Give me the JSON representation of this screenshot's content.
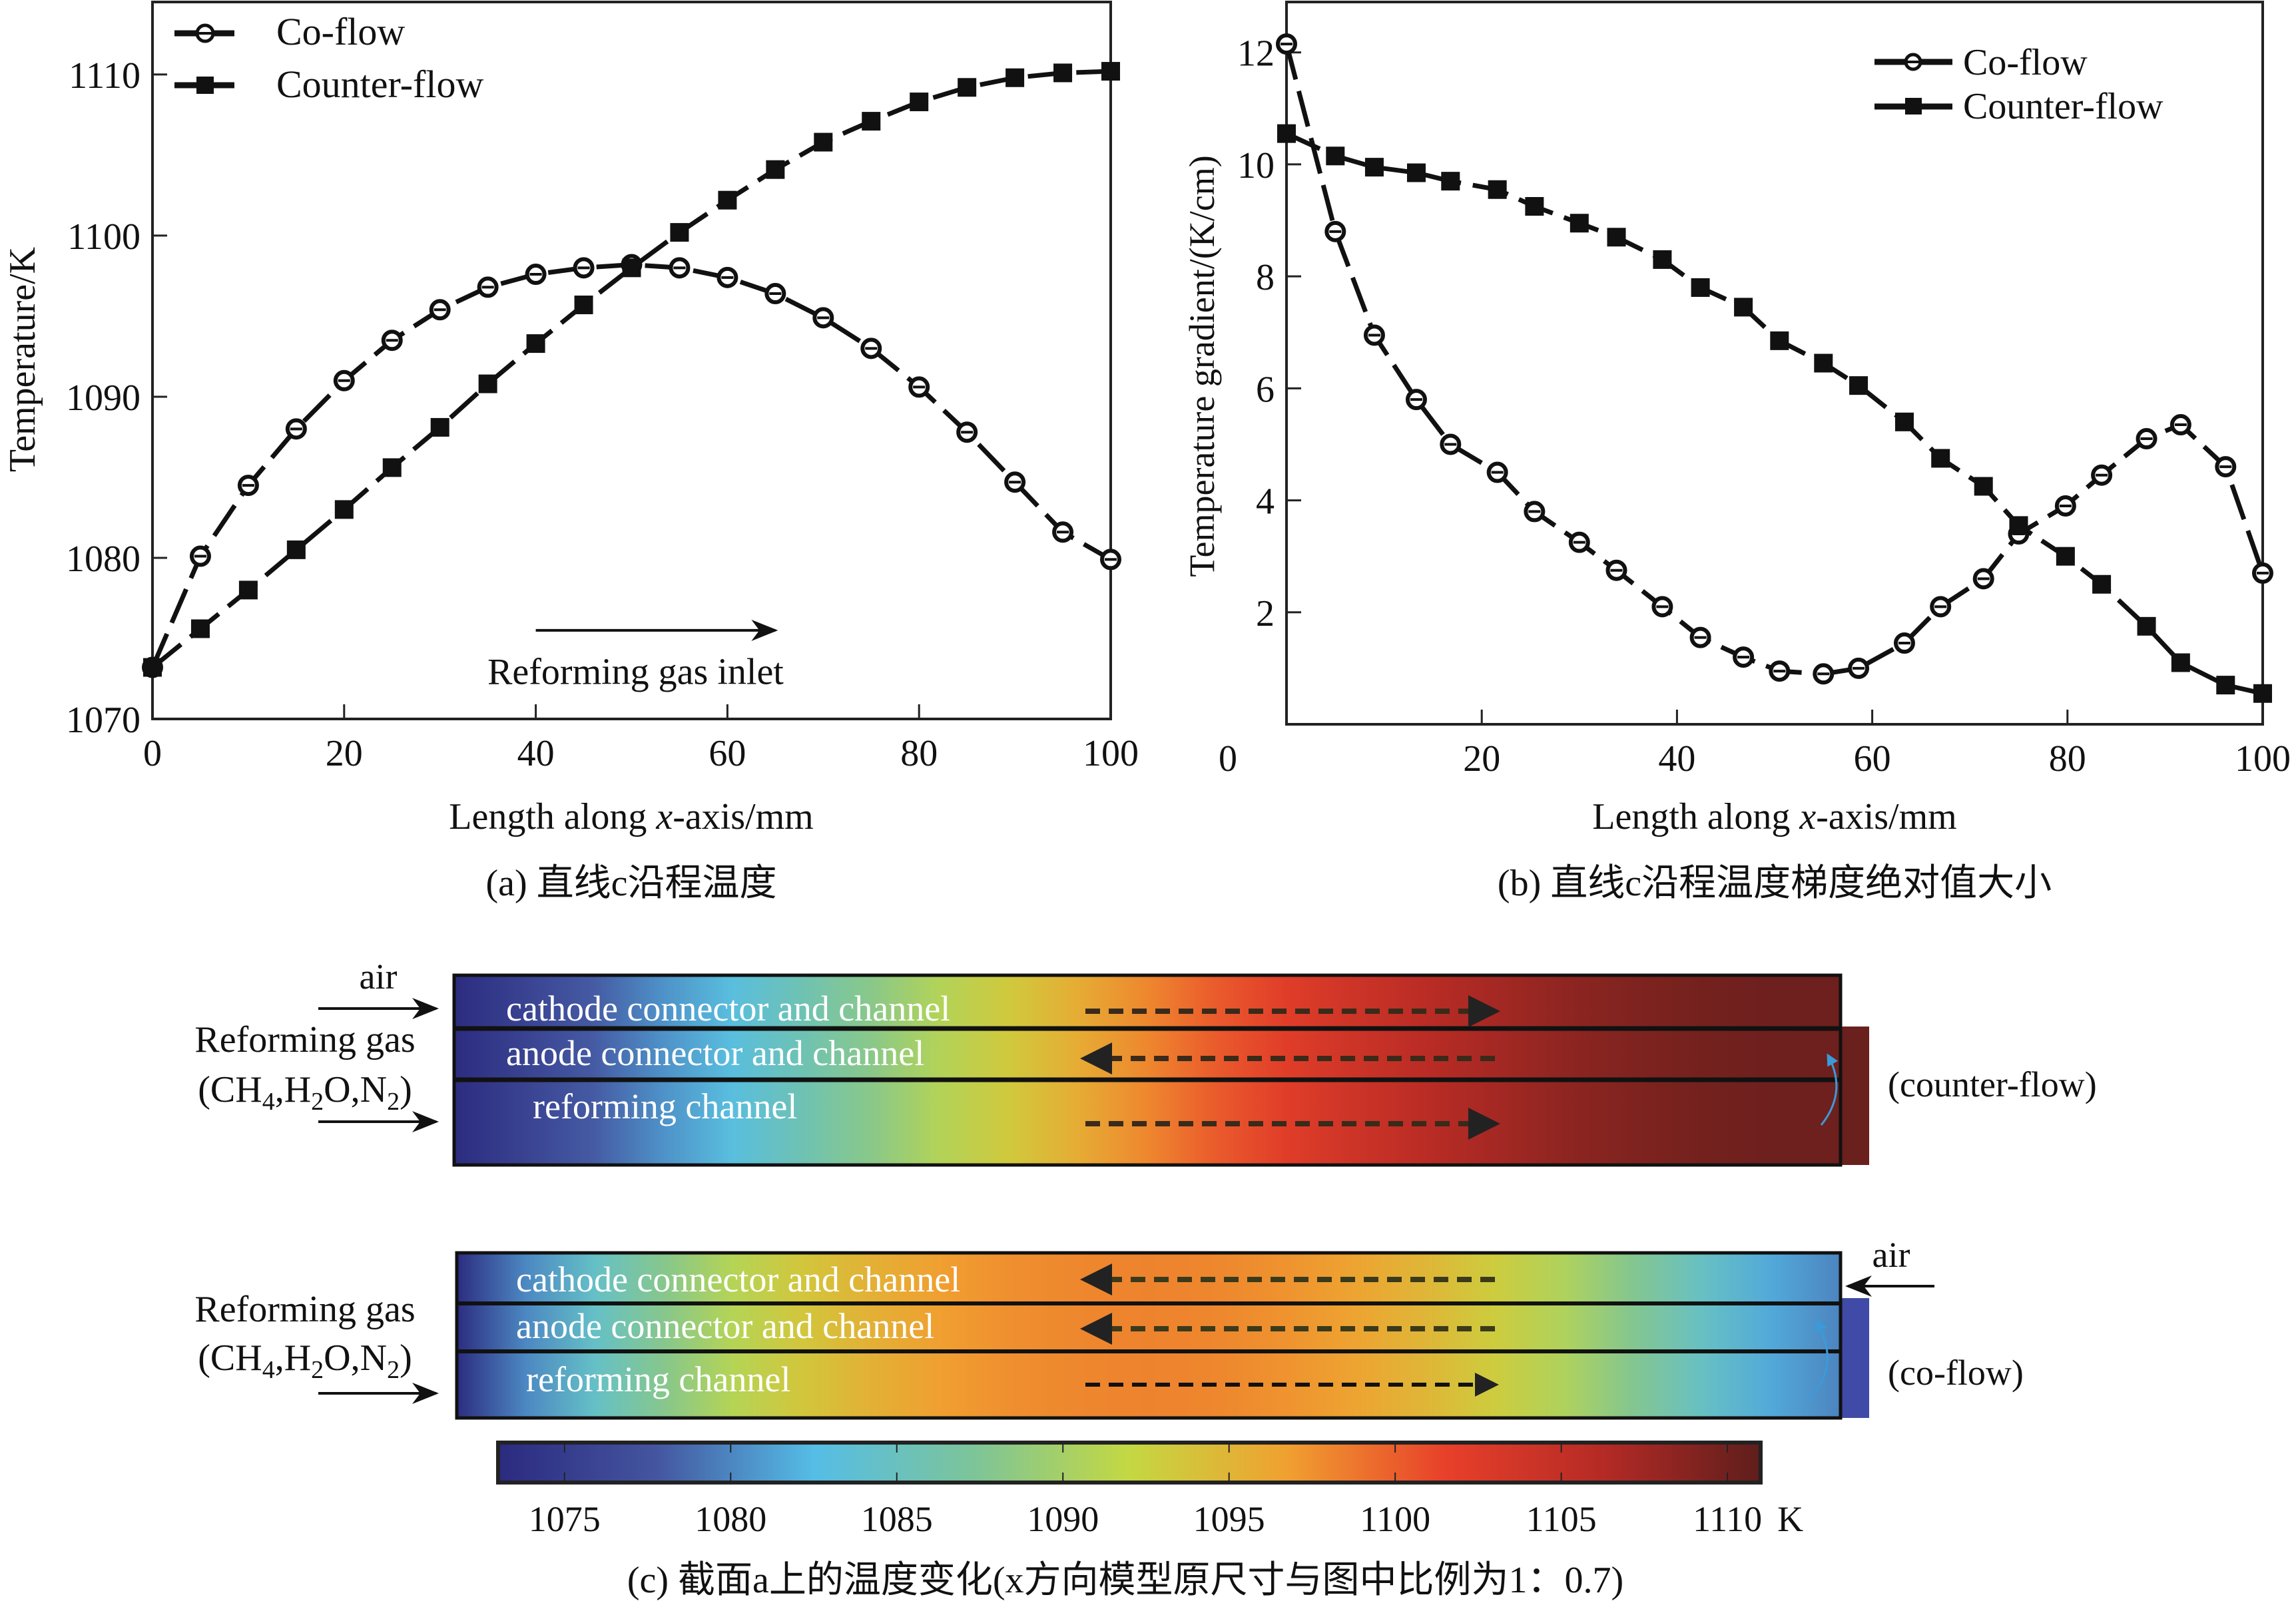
{
  "chart_data": [
    {
      "id": "a",
      "type": "line",
      "title": "",
      "caption": "(a) 直线c沿程温度",
      "xlabel_prefix": "Length along ",
      "xlabel_italic": "x",
      "xlabel_suffix": "-axis/mm",
      "ylabel": "Temperature/K",
      "xlim": [
        0,
        100
      ],
      "ylim": [
        1070,
        1114.5
      ],
      "xticks": [
        0,
        20,
        40,
        60,
        80,
        100
      ],
      "yticks": [
        1070,
        1080,
        1090,
        1100,
        1110
      ],
      "grid": false,
      "legend_position": "top-left",
      "annotation": {
        "text": "Reforming gas inlet",
        "arrow_from_x": 40,
        "arrow_to_x": 65,
        "arrow_y": 1075.5,
        "text_y": 1072.5
      },
      "x": [
        0,
        5,
        10,
        15,
        20,
        25,
        30,
        35,
        40,
        45,
        50,
        55,
        60,
        65,
        70,
        75,
        80,
        85,
        90,
        95,
        100
      ],
      "series": [
        {
          "name": "Co-flow",
          "marker": "circle",
          "values": [
            1073.2,
            1080.1,
            1084.5,
            1088.0,
            1091.0,
            1093.5,
            1095.4,
            1096.8,
            1097.6,
            1098.0,
            1098.2,
            1098.0,
            1097.4,
            1096.4,
            1094.9,
            1093.0,
            1090.6,
            1087.8,
            1084.7,
            1081.6,
            1079.9
          ]
        },
        {
          "name": "Counter-flow",
          "marker": "square",
          "values": [
            1073.2,
            1075.6,
            1078.0,
            1080.5,
            1083.0,
            1085.6,
            1088.1,
            1090.8,
            1093.3,
            1095.7,
            1098.0,
            1100.2,
            1102.2,
            1104.1,
            1105.8,
            1107.1,
            1108.3,
            1109.2,
            1109.8,
            1110.1,
            1110.2
          ]
        }
      ]
    },
    {
      "id": "b",
      "type": "line",
      "title": "",
      "caption": "(b) 直线c沿程温度梯度绝对值大小",
      "xlabel_prefix": "Length along ",
      "xlabel_italic": "x",
      "xlabel_suffix": "-axis/mm",
      "ylabel": "Temperature gradient/(K/cm)",
      "xlim": [
        0,
        100
      ],
      "ylim": [
        0,
        12.9
      ],
      "xticks": [
        0,
        20,
        40,
        60,
        80,
        100
      ],
      "yticks": [
        2,
        4,
        6,
        8,
        10,
        12
      ],
      "grid": false,
      "legend_position": "top-right",
      "x": [
        0,
        5,
        9,
        13.3,
        16.8,
        21.6,
        25.4,
        30,
        33.8,
        38.5,
        42.4,
        46.8,
        50.5,
        55,
        58.6,
        63.3,
        67,
        71.4,
        75,
        79.8,
        83.5,
        88.1,
        91.6,
        96.2,
        100
      ],
      "series": [
        {
          "name": "Co-flow",
          "marker": "circle",
          "values": [
            12.15,
            8.8,
            6.95,
            5.8,
            5.0,
            4.5,
            3.8,
            3.25,
            2.75,
            2.1,
            1.55,
            1.2,
            0.95,
            0.9,
            1.0,
            1.45,
            2.1,
            2.6,
            3.4,
            3.9,
            4.45,
            5.1,
            5.35,
            4.6,
            2.7
          ]
        },
        {
          "name": "Counter-flow",
          "marker": "square",
          "values": [
            10.55,
            10.15,
            9.95,
            9.85,
            9.7,
            9.55,
            9.25,
            8.95,
            8.7,
            8.3,
            7.8,
            7.45,
            6.85,
            6.45,
            6.05,
            5.4,
            4.75,
            4.25,
            3.55,
            3.0,
            2.5,
            1.75,
            1.1,
            0.7,
            0.55
          ]
        }
      ]
    },
    {
      "id": "c",
      "type": "heatmap",
      "caption": "(c) 截面a上的温度变化(x方向模型原尺寸与图中比例为1：0.7)",
      "colorbar": {
        "range": [
          1073,
          1111
        ],
        "ticks": [
          1075,
          1080,
          1085,
          1090,
          1095,
          1100,
          1105,
          1110
        ],
        "unit": "K",
        "colors": [
          "#2b2a7f",
          "#44559f",
          "#55bde6",
          "#7cc49a",
          "#c4d842",
          "#f0a030",
          "#e8402a",
          "#b52a25",
          "#5e1e1c"
        ]
      },
      "panels": [
        {
          "name": "counter-flow",
          "label": "(counter-flow)",
          "left_labels": {
            "air": "air",
            "gas": "Reforming gas",
            "species": [
              "CH",
              "4",
              ",H",
              "2",
              "O,N",
              "2"
            ]
          },
          "air_side": "left",
          "channels": [
            {
              "label": "cathode connector and channel",
              "flow": "right"
            },
            {
              "label": "anode connector and channel",
              "flow": "left"
            },
            {
              "label": "reforming channel",
              "flow": "right"
            }
          ],
          "temperature_profile": [
            1073.2,
            1075.6,
            1078.0,
            1080.5,
            1083.0,
            1085.6,
            1088.1,
            1090.8,
            1093.3,
            1095.7,
            1098.0,
            1100.2,
            1102.2,
            1104.1,
            1105.8,
            1107.1,
            1108.3,
            1109.2,
            1109.8,
            1110.1,
            1110.2
          ]
        },
        {
          "name": "co-flow",
          "label": "(co-flow)",
          "left_labels": {
            "air": "air",
            "gas": "Reforming gas",
            "species": [
              "CH",
              "4",
              ",H",
              "2",
              "O,N",
              "2"
            ]
          },
          "air_side": "right",
          "channels": [
            {
              "label": "cathode connector and channel",
              "flow": "left"
            },
            {
              "label": "anode connector and channel",
              "flow": "left"
            },
            {
              "label": "reforming channel",
              "flow": "right"
            }
          ],
          "temperature_profile": [
            1073.2,
            1080.1,
            1084.5,
            1088.0,
            1091.0,
            1093.5,
            1095.4,
            1096.8,
            1097.6,
            1098.0,
            1098.2,
            1098.0,
            1097.4,
            1096.4,
            1094.9,
            1093.0,
            1090.6,
            1087.8,
            1084.7,
            1081.6,
            1079.9
          ]
        }
      ]
    }
  ]
}
